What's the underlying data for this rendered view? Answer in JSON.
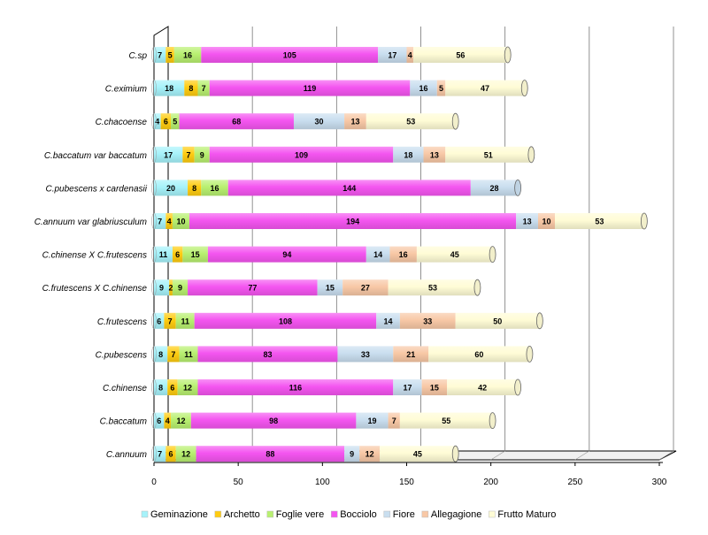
{
  "chart_data": {
    "type": "bar",
    "orientation": "horizontal",
    "stacked": true,
    "style": "3d-cylinder",
    "categories": [
      "C.sp",
      "C.eximium",
      "C.chacoense",
      "C.baccatum var baccatum",
      "C.pubescens x cardenasii",
      "C.annuum var glabriusculum",
      "C.chinense X C.frutescens",
      "C.frutescens X C.chinense",
      "C.frutescens",
      "C.pubescens",
      "C.chinense",
      "C.baccatum",
      "C.annuum"
    ],
    "series": [
      {
        "name": "Geminazione",
        "color": "#A6F2FA",
        "values": [
          7,
          18,
          4,
          17,
          20,
          7,
          11,
          9,
          6,
          8,
          8,
          6,
          7
        ]
      },
      {
        "name": "Archetto",
        "color": "#FFCC11",
        "values": [
          5,
          8,
          6,
          7,
          8,
          4,
          6,
          2,
          7,
          7,
          6,
          4,
          6
        ]
      },
      {
        "name": "Foglie vere",
        "color": "#B8F070",
        "values": [
          16,
          7,
          5,
          9,
          16,
          10,
          15,
          9,
          11,
          11,
          12,
          12,
          12
        ]
      },
      {
        "name": "Bocciolo",
        "color": "#F455F0",
        "values": [
          105,
          119,
          68,
          109,
          144,
          194,
          94,
          77,
          108,
          83,
          116,
          98,
          88
        ]
      },
      {
        "name": "Fiore",
        "color": "#C9DEEF",
        "values": [
          17,
          16,
          30,
          18,
          28,
          13,
          14,
          15,
          14,
          33,
          17,
          19,
          9
        ]
      },
      {
        "name": "Allegagione",
        "color": "#F8C8A6",
        "values": [
          4,
          5,
          13,
          13,
          null,
          10,
          16,
          27,
          33,
          21,
          15,
          7,
          12
        ]
      },
      {
        "name": "Frutto Maturo",
        "color": "#FFFCD6",
        "values": [
          56,
          47,
          53,
          51,
          null,
          53,
          45,
          53,
          50,
          60,
          42,
          55,
          45
        ]
      }
    ],
    "xlim": [
      0,
      300
    ],
    "xticks": [
      "0",
      "50",
      "100",
      "150",
      "200",
      "250",
      "300"
    ],
    "grid": true,
    "legend_position": "bottom",
    "title": "",
    "xlabel": "",
    "ylabel": ""
  }
}
